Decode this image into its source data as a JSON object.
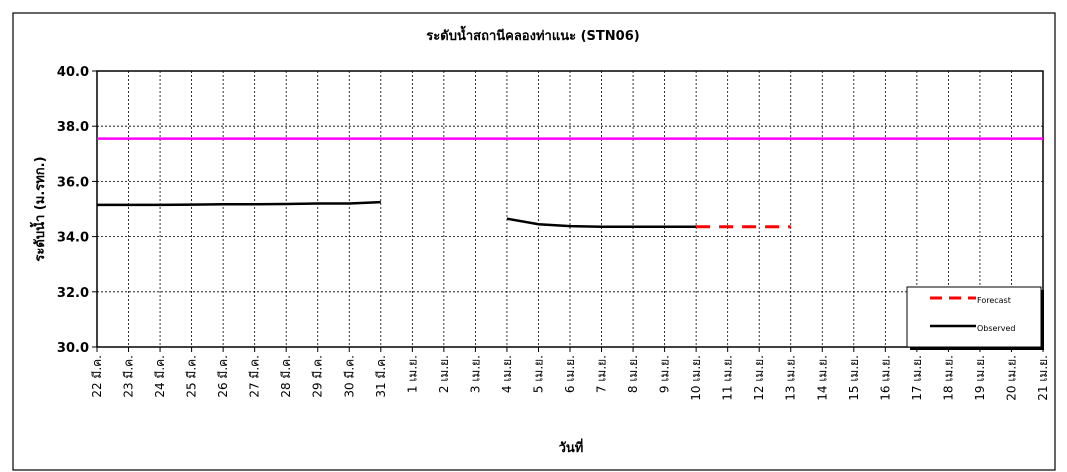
{
  "chart_data": {
    "type": "line",
    "title": "ระดับน้ำสถานีคลองท่าแนะ (STN06)",
    "xlabel": "วันที่",
    "ylabel": "ระดับน้ำ (ม.รทก.)",
    "ylim": [
      30.0,
      40.0
    ],
    "y_ticks": [
      "30.0",
      "32.0",
      "34.0",
      "36.0",
      "38.0",
      "40.0"
    ],
    "categories": [
      "22 มี.ค.",
      "23 มี.ค.",
      "24 มี.ค.",
      "25 มี.ค.",
      "26 มี.ค.",
      "27 มี.ค.",
      "28 มี.ค.",
      "29 มี.ค.",
      "30 มี.ค.",
      "31 มี.ค.",
      "1 เม.ย.",
      "2 เม.ย.",
      "3 เม.ย.",
      "4 เม.ย.",
      "5 เม.ย.",
      "6 เม.ย.",
      "7 เม.ย.",
      "8 เม.ย.",
      "9 เม.ย.",
      "10 เม.ย.",
      "11 เม.ย.",
      "12 เม.ย.",
      "13 เม.ย.",
      "14 เม.ย.",
      "15 เม.ย.",
      "16 เม.ย.",
      "17 เม.ย.",
      "18 เม.ย.",
      "19 เม.ย.",
      "20 เม.ย.",
      "21 เม.ย."
    ],
    "grid": true,
    "legend_position": "bottom-right",
    "series": [
      {
        "name": "Observed",
        "color": "#000000",
        "style": "solid",
        "segments": [
          [
            [
              0,
              35.15
            ],
            [
              1,
              35.15
            ],
            [
              2,
              35.15
            ],
            [
              3,
              35.16
            ],
            [
              4,
              35.17
            ],
            [
              5,
              35.17
            ],
            [
              6,
              35.18
            ],
            [
              7,
              35.2
            ],
            [
              8,
              35.2
            ],
            [
              9,
              35.25
            ]
          ],
          [
            [
              13,
              34.65
            ],
            [
              14,
              34.45
            ],
            [
              15,
              34.38
            ],
            [
              16,
              34.36
            ],
            [
              17,
              34.36
            ],
            [
              18,
              34.36
            ],
            [
              19,
              34.36
            ]
          ]
        ]
      },
      {
        "name": "Forecast",
        "color": "#ff0000",
        "style": "dashed",
        "segments": [
          [
            [
              19,
              34.36
            ],
            [
              20,
              34.36
            ],
            [
              21,
              34.36
            ],
            [
              22,
              34.36
            ]
          ]
        ]
      },
      {
        "name": "",
        "color": "#ff00ff",
        "style": "solid",
        "segments": [
          [
            [
              -0.1,
              37.55
            ],
            [
              30,
              37.55
            ]
          ]
        ]
      }
    ]
  }
}
